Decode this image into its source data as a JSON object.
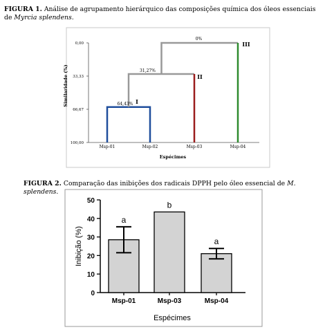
{
  "figure1": {
    "caption_label": "FIGURA 1.",
    "caption_text": " Análise de agrupamento hierárquico das composições química dos óleos essenciais de ",
    "caption_species": "Myrcia splendens",
    "caption_end": "."
  },
  "figure2": {
    "caption_label": "FIGURA 2.",
    "caption_text": " Comparação das inibições dos radicais DPPH pelo óleo essencial de ",
    "caption_species": "M. splendens",
    "caption_end": "."
  },
  "chart_data": [
    {
      "type": "dendrogram",
      "ylabel": "Similaridade (%)",
      "xlabel": "Espécimes",
      "y_ticks": [
        "0,00",
        "33,33",
        "66,67",
        "100,00"
      ],
      "ylim": [
        100,
        0
      ],
      "leaves": [
        "Msp-01",
        "Msp-02",
        "Msp-03",
        "Msp-04"
      ],
      "merges": [
        {
          "left": "Msp-01",
          "right": "Msp-02",
          "similarity": 64.43,
          "label": "64,43%",
          "cluster": "I",
          "color": "#1f4e9c"
        },
        {
          "left": "I",
          "right": "Msp-03",
          "similarity": 31.27,
          "label": "31,27%",
          "cluster": "II",
          "color": "#9b1b1b"
        },
        {
          "left": "II",
          "right": "Msp-04",
          "similarity": 0,
          "label": "0%",
          "cluster": "III",
          "color": "#2e8b2e"
        }
      ],
      "merge_color": "#999999",
      "grid": false
    },
    {
      "type": "bar",
      "categories": [
        "Msp-01",
        "Msp-03",
        "Msp-04"
      ],
      "values": [
        28.5,
        43.5,
        21
      ],
      "errors": [
        7,
        0,
        2.8
      ],
      "letters": [
        "a",
        "b",
        "a"
      ],
      "ylabel": "Inibição (%)",
      "xlabel": "Espécimes",
      "ylim": [
        0,
        50
      ],
      "y_ticks": [
        "0",
        "10",
        "20",
        "30",
        "40",
        "50"
      ],
      "bar_color": "#d3d3d3",
      "grid": false
    }
  ]
}
